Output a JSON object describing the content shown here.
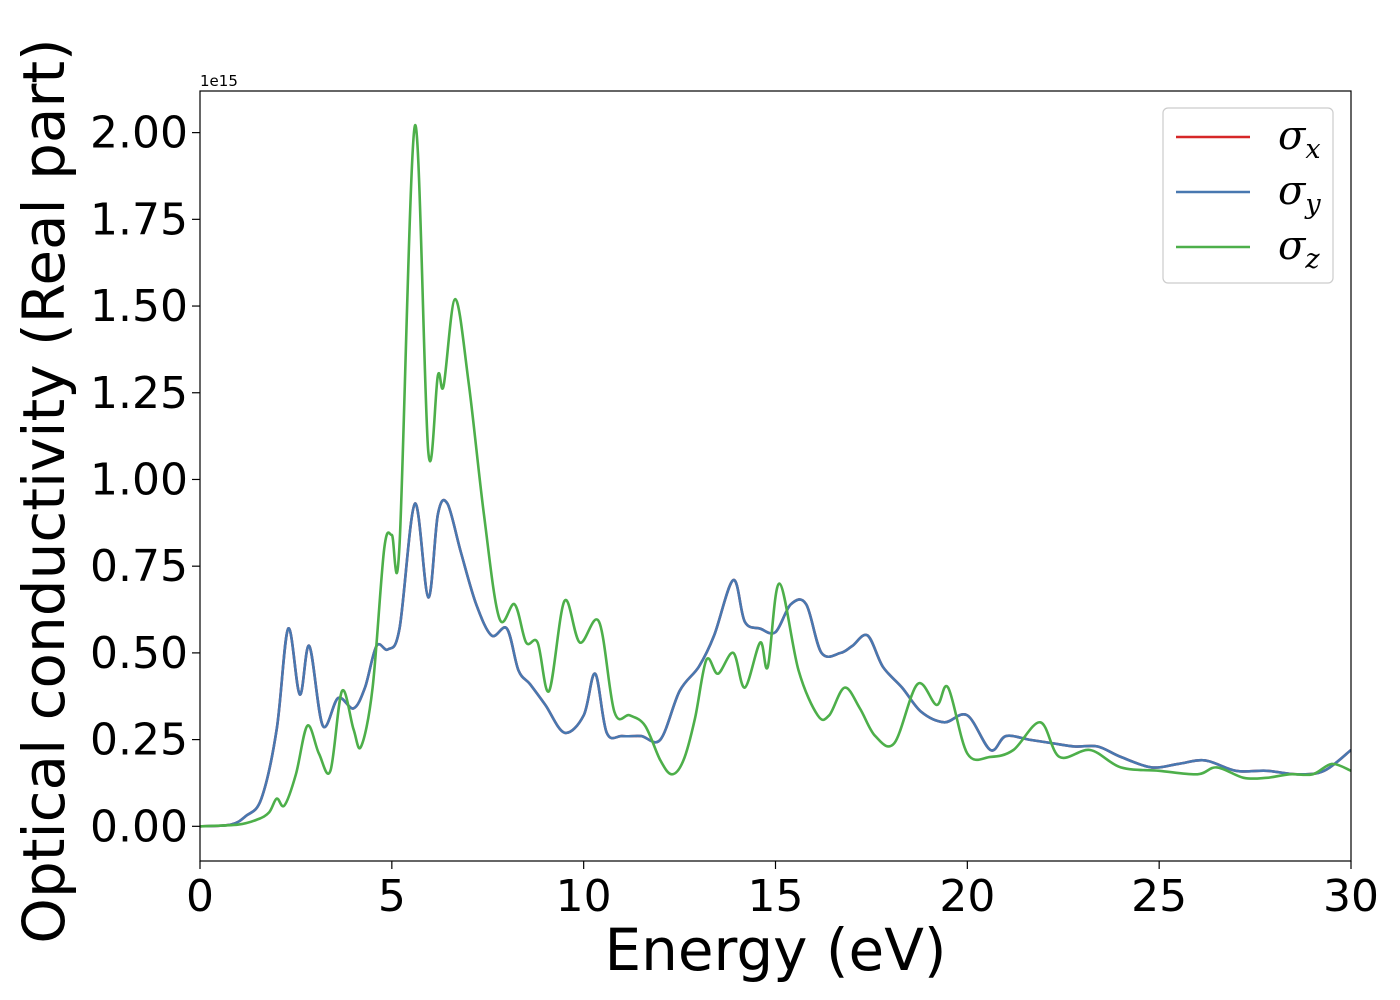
{
  "chart_data": {
    "type": "line",
    "title": "",
    "xlabel": "Energy (eV)",
    "ylabel": "Optical conductivity (Real part)",
    "y_offset_label": "1e15",
    "xlim": [
      0,
      30
    ],
    "ylim": [
      -0.1,
      2.12
    ],
    "xticks": [
      0,
      5,
      10,
      15,
      20,
      25,
      30
    ],
    "xtick_labels": [
      "0",
      "5",
      "10",
      "15",
      "20",
      "25",
      "30"
    ],
    "yticks": [
      0.0,
      0.25,
      0.5,
      0.75,
      1.0,
      1.25,
      1.5,
      1.75,
      2.0
    ],
    "ytick_labels": [
      "0.00",
      "0.25",
      "0.50",
      "0.75",
      "1.00",
      "1.25",
      "1.50",
      "1.75",
      "2.00"
    ],
    "grid": false,
    "legend_position": "top-right",
    "series": [
      {
        "name": "σx",
        "symbol": "σ",
        "subscript": "x",
        "color": "#d62728",
        "x": [
          0,
          0.8,
          1.2,
          1.6,
          2.0,
          2.3,
          2.6,
          2.85,
          3.2,
          3.6,
          4.0,
          4.3,
          4.6,
          4.9,
          5.2,
          5.6,
          5.95,
          6.2,
          6.45,
          6.8,
          7.2,
          7.6,
          8.0,
          8.3,
          8.6,
          9.0,
          9.5,
          10.0,
          10.3,
          10.6,
          11.0,
          11.5,
          12.0,
          12.5,
          13.0,
          13.4,
          13.9,
          14.2,
          14.6,
          15.0,
          15.4,
          15.8,
          16.2,
          16.7,
          17.0,
          17.4,
          17.8,
          18.3,
          18.8,
          19.4,
          20.0,
          20.6,
          21.0,
          21.6,
          22.2,
          22.8,
          23.4,
          24.0,
          24.8,
          25.5,
          26.2,
          27.0,
          27.8,
          28.6,
          29.3,
          30.0
        ],
        "y": [
          0.0,
          0.005,
          0.03,
          0.08,
          0.28,
          0.57,
          0.38,
          0.52,
          0.29,
          0.37,
          0.34,
          0.4,
          0.52,
          0.51,
          0.57,
          0.93,
          0.66,
          0.9,
          0.93,
          0.79,
          0.64,
          0.55,
          0.57,
          0.45,
          0.41,
          0.35,
          0.27,
          0.32,
          0.44,
          0.27,
          0.26,
          0.26,
          0.25,
          0.39,
          0.46,
          0.55,
          0.71,
          0.59,
          0.57,
          0.56,
          0.64,
          0.64,
          0.5,
          0.5,
          0.52,
          0.55,
          0.46,
          0.4,
          0.33,
          0.3,
          0.32,
          0.22,
          0.26,
          0.25,
          0.24,
          0.23,
          0.23,
          0.2,
          0.17,
          0.18,
          0.19,
          0.16,
          0.16,
          0.15,
          0.16,
          0.22
        ]
      },
      {
        "name": "σy",
        "symbol": "σ",
        "subscript": "y",
        "color": "#4878b0",
        "x": [
          0,
          0.8,
          1.2,
          1.6,
          2.0,
          2.3,
          2.6,
          2.85,
          3.2,
          3.6,
          4.0,
          4.3,
          4.6,
          4.9,
          5.2,
          5.6,
          5.95,
          6.2,
          6.45,
          6.8,
          7.2,
          7.6,
          8.0,
          8.3,
          8.6,
          9.0,
          9.5,
          10.0,
          10.3,
          10.6,
          11.0,
          11.5,
          12.0,
          12.5,
          13.0,
          13.4,
          13.9,
          14.2,
          14.6,
          15.0,
          15.4,
          15.8,
          16.2,
          16.7,
          17.0,
          17.4,
          17.8,
          18.3,
          18.8,
          19.4,
          20.0,
          20.6,
          21.0,
          21.6,
          22.2,
          22.8,
          23.4,
          24.0,
          24.8,
          25.5,
          26.2,
          27.0,
          27.8,
          28.6,
          29.3,
          30.0
        ],
        "y": [
          0.0,
          0.005,
          0.03,
          0.08,
          0.28,
          0.57,
          0.38,
          0.52,
          0.29,
          0.37,
          0.34,
          0.4,
          0.52,
          0.51,
          0.57,
          0.93,
          0.66,
          0.9,
          0.93,
          0.79,
          0.64,
          0.55,
          0.57,
          0.45,
          0.41,
          0.35,
          0.27,
          0.32,
          0.44,
          0.27,
          0.26,
          0.26,
          0.25,
          0.39,
          0.46,
          0.55,
          0.71,
          0.59,
          0.57,
          0.56,
          0.64,
          0.64,
          0.5,
          0.5,
          0.52,
          0.55,
          0.46,
          0.4,
          0.33,
          0.3,
          0.32,
          0.22,
          0.26,
          0.25,
          0.24,
          0.23,
          0.23,
          0.2,
          0.17,
          0.18,
          0.19,
          0.16,
          0.16,
          0.15,
          0.16,
          0.22
        ]
      },
      {
        "name": "σz",
        "symbol": "σ",
        "subscript": "z",
        "color": "#4daf4a",
        "x": [
          0,
          1.0,
          1.5,
          1.8,
          2.0,
          2.2,
          2.5,
          2.8,
          3.1,
          3.4,
          3.7,
          4.0,
          4.2,
          4.5,
          4.8,
          5.0,
          5.2,
          5.6,
          5.95,
          6.2,
          6.35,
          6.65,
          7.0,
          7.4,
          7.8,
          8.2,
          8.5,
          8.8,
          9.1,
          9.5,
          9.9,
          10.4,
          10.8,
          11.2,
          11.6,
          12.0,
          12.3,
          12.6,
          12.9,
          13.2,
          13.5,
          13.9,
          14.2,
          14.6,
          14.8,
          15.1,
          15.6,
          16.1,
          16.4,
          16.8,
          17.2,
          17.6,
          18.1,
          18.7,
          19.2,
          19.5,
          20.0,
          20.6,
          21.2,
          21.9,
          22.4,
          23.2,
          24.0,
          25.0,
          26.0,
          26.5,
          27.2,
          27.8,
          28.4,
          29.0,
          29.5,
          30.0
        ],
        "y": [
          0.0,
          0.005,
          0.02,
          0.04,
          0.08,
          0.06,
          0.15,
          0.29,
          0.21,
          0.16,
          0.39,
          0.28,
          0.23,
          0.4,
          0.8,
          0.84,
          0.81,
          2.02,
          1.08,
          1.3,
          1.27,
          1.52,
          1.28,
          0.9,
          0.6,
          0.64,
          0.53,
          0.53,
          0.39,
          0.65,
          0.53,
          0.59,
          0.33,
          0.32,
          0.29,
          0.19,
          0.15,
          0.19,
          0.31,
          0.48,
          0.44,
          0.5,
          0.4,
          0.53,
          0.46,
          0.7,
          0.45,
          0.32,
          0.32,
          0.4,
          0.34,
          0.26,
          0.24,
          0.41,
          0.35,
          0.4,
          0.21,
          0.2,
          0.22,
          0.3,
          0.2,
          0.22,
          0.17,
          0.16,
          0.15,
          0.17,
          0.14,
          0.14,
          0.15,
          0.15,
          0.18,
          0.16
        ]
      }
    ]
  }
}
